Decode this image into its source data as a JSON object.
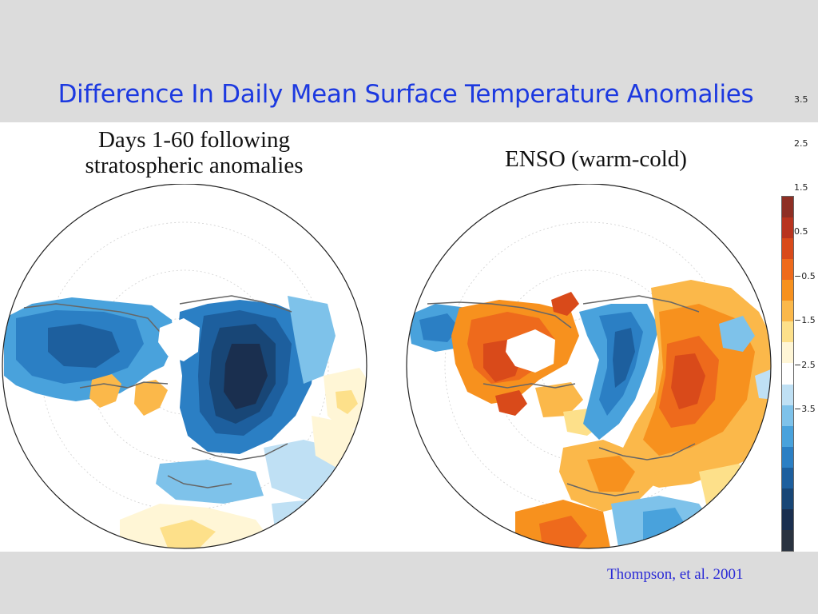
{
  "slide": {
    "title": "Difference In Daily Mean Surface Temperature Anomalies",
    "citation": "Thompson, et al. 2001"
  },
  "maps": [
    {
      "id": "strat",
      "title_line1": "Days 1-60 following",
      "title_line2": "stratospheric anomalies"
    },
    {
      "id": "enso",
      "title_line1": "ENSO (warm-cold)"
    }
  ],
  "colorbar": {
    "tick_labels": [
      "3.5",
      "2.5",
      "1.5",
      "0.5",
      "−0.5",
      "−1.5",
      "−2.5",
      "−3.5"
    ],
    "colors": [
      "#8e2f24",
      "#b8341f",
      "#d94a1a",
      "#ee6a1c",
      "#f7911e",
      "#fbb84a",
      "#fde08a",
      "#fff6d6",
      "#ffffff",
      "#bfe0f4",
      "#7ec2ea",
      "#49a2dc",
      "#2b7fc4",
      "#1d5f9e",
      "#184676",
      "#1a2f4f",
      "#2a3340"
    ],
    "colors_top_to_bottom": true
  },
  "colors": {
    "title_blue": "#1c39e0",
    "citation_blue": "#2a2ad6",
    "slide_bg": "#dcdcdc"
  }
}
